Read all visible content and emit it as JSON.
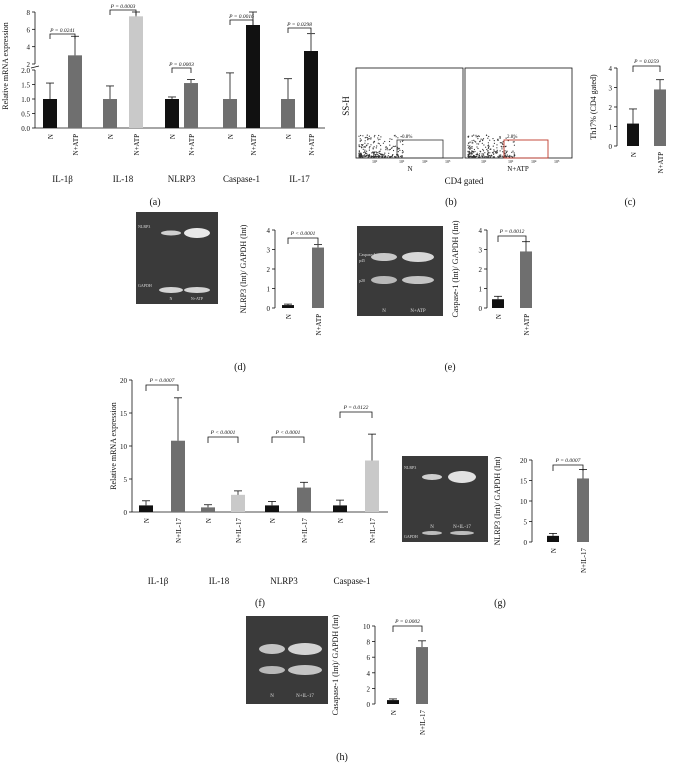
{
  "colors": {
    "black": "#111111",
    "dark_gray": "#6f6f6f",
    "light_gray": "#c9c9c9",
    "blot": "#3a3a3a"
  },
  "panels": {
    "a": {
      "label": "(a)"
    },
    "b": {
      "label": "(b)",
      "y_axis": "SS-H",
      "x_axis": "CD4 gated",
      "plots": [
        {
          "percent": "0.8%",
          "condition": "N",
          "ticks": [
            "10²",
            "10³",
            "10⁴",
            "10⁵"
          ]
        },
        {
          "percent": "2.8%",
          "condition": "N+ATP",
          "ticks": [
            "10²",
            "10³",
            "10⁴",
            "10⁵"
          ]
        }
      ]
    },
    "c": {
      "label": "(c)"
    },
    "d": {
      "label": "(d)",
      "blot_labels": [
        "NLRP3",
        "GAPDH",
        "N",
        "N+ATP"
      ]
    },
    "e": {
      "label": "(e)",
      "blot_labels": [
        "Caspase-1",
        "p45",
        "p20",
        "N",
        "N+ATP"
      ]
    },
    "f": {
      "label": "(f)"
    },
    "g": {
      "label": "(g)",
      "blot_labels": [
        "NLRP3",
        "GAPDH",
        "N",
        "N+IL-17"
      ]
    },
    "h": {
      "label": "(h)",
      "blot_labels": [
        "N",
        "N+IL-17"
      ]
    }
  },
  "chart_data": [
    {
      "panel": "a",
      "type": "bar",
      "ylabel": "Relative mRNA expression",
      "broken_axis": true,
      "ylim_lower": [
        0,
        2.0
      ],
      "ylim_upper": [
        2,
        8
      ],
      "y_ticks_lower": [
        "0.0",
        "0.5",
        "1.0",
        "1.5",
        "2.0"
      ],
      "y_ticks_upper": [
        "2",
        "4",
        "6",
        "8"
      ],
      "groups": [
        {
          "name": "IL-1β",
          "pvalue": "P = 0.0241",
          "categories": [
            "N",
            "N+ATP"
          ],
          "values": [
            1.0,
            3.0
          ],
          "errors": [
            0.55,
            2.2
          ]
        },
        {
          "name": "IL-18",
          "pvalue": "P = 0.0003",
          "categories": [
            "N",
            "N+ATP"
          ],
          "values": [
            1.0,
            7.5
          ],
          "errors": [
            0.45,
            5.0
          ]
        },
        {
          "name": "NLRP3",
          "pvalue": "P = 0.0003",
          "categories": [
            "N",
            "N+ATP"
          ],
          "values": [
            1.0,
            1.55
          ],
          "errors": [
            0.07,
            0.12
          ]
        },
        {
          "name": "Caspase-1",
          "pvalue": "P = 0.0016",
          "categories": [
            "N",
            "N+ATP"
          ],
          "values": [
            1.0,
            6.5
          ],
          "errors": [
            0.9,
            5.2
          ]
        },
        {
          "name": "IL-17",
          "pvalue": "P = 0.0298",
          "categories": [
            "N",
            "N+ATP"
          ],
          "values": [
            1.0,
            3.5
          ],
          "errors": [
            0.7,
            2.0
          ]
        }
      ]
    },
    {
      "panel": "c",
      "type": "bar",
      "ylabel": "Th17% (CD4 gated)",
      "ylim": [
        0,
        4
      ],
      "y_ticks": [
        "0",
        "1",
        "2",
        "3",
        "4"
      ],
      "pvalue": "P = 0.0259",
      "categories": [
        "N",
        "N+ATP"
      ],
      "values": [
        1.15,
        2.9
      ],
      "errors": [
        0.75,
        0.5
      ]
    },
    {
      "panel": "d",
      "type": "bar",
      "ylabel": "NLRP3 (Int)/ GAPDH (Int)",
      "ylim": [
        0,
        4
      ],
      "y_ticks": [
        "0",
        "1",
        "2",
        "3",
        "4"
      ],
      "pvalue": "P < 0.0001",
      "categories": [
        "N",
        "N+ATP"
      ],
      "values": [
        0.15,
        3.1
      ],
      "errors": [
        0.05,
        0.15
      ]
    },
    {
      "panel": "e",
      "type": "bar",
      "ylabel": "Caspase-1 (Int)/ GAPDH (Int)",
      "ylim": [
        0,
        4
      ],
      "y_ticks": [
        "0",
        "1",
        "2",
        "3",
        "4"
      ],
      "pvalue": "P = 0.0012",
      "categories": [
        "N",
        "N+ATP"
      ],
      "values": [
        0.45,
        2.9
      ],
      "errors": [
        0.15,
        0.5
      ]
    },
    {
      "panel": "f",
      "type": "bar",
      "ylabel": "Relative mRNA expression",
      "ylim": [
        0,
        20
      ],
      "y_ticks": [
        "0",
        "5",
        "10",
        "15",
        "20"
      ],
      "groups": [
        {
          "name": "IL-1β",
          "pvalue": "P = 0.0007",
          "categories": [
            "N",
            "N+IL-17"
          ],
          "values": [
            1.0,
            10.8
          ],
          "errors": [
            0.7,
            6.5
          ]
        },
        {
          "name": "IL-18",
          "pvalue": "P < 0.0001",
          "categories": [
            "N",
            "N+IL-17"
          ],
          "values": [
            0.7,
            2.6
          ],
          "errors": [
            0.4,
            0.6
          ]
        },
        {
          "name": "NLRP3",
          "pvalue": "P < 0.0001",
          "categories": [
            "N",
            "N+IL-17"
          ],
          "values": [
            1.0,
            3.7
          ],
          "errors": [
            0.6,
            0.8
          ]
        },
        {
          "name": "Caspase-1",
          "pvalue": "P = 0.0122",
          "categories": [
            "N",
            "N+IL-17"
          ],
          "values": [
            1.0,
            7.8
          ],
          "errors": [
            0.8,
            4.0
          ]
        }
      ]
    },
    {
      "panel": "g",
      "type": "bar",
      "ylabel": "NLRP3 (Int)/ GAPDH (Int)",
      "ylim": [
        0,
        20
      ],
      "y_ticks": [
        "0",
        "5",
        "10",
        "15",
        "20"
      ],
      "pvalue": "P = 0.0007",
      "categories": [
        "N",
        "N+IL-17"
      ],
      "values": [
        1.5,
        15.5
      ],
      "errors": [
        0.6,
        2.2
      ]
    },
    {
      "panel": "h",
      "type": "bar",
      "ylabel": "Casapase-1 (Int)/ GAPDH (Int)",
      "ylim": [
        0,
        10
      ],
      "y_ticks": [
        "0",
        "2",
        "4",
        "6",
        "8",
        "10"
      ],
      "pvalue": "P = 0.0002",
      "categories": [
        "N",
        "N+IL-17"
      ],
      "values": [
        0.5,
        7.3
      ],
      "errors": [
        0.15,
        0.8
      ]
    }
  ]
}
